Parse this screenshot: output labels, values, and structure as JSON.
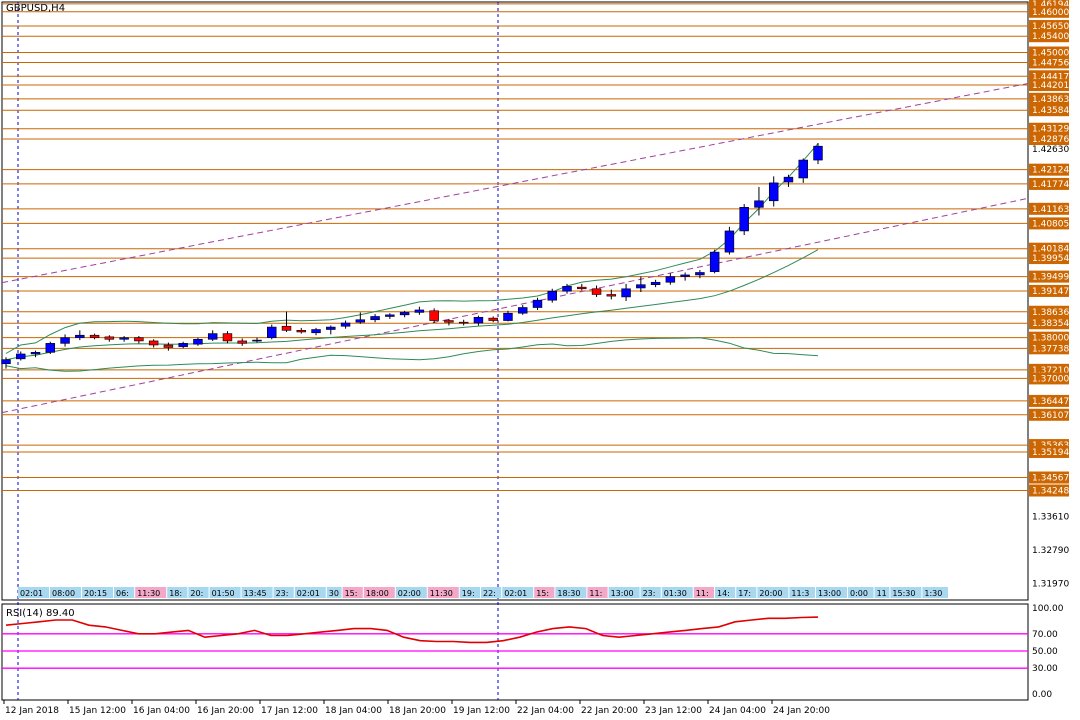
{
  "symbol_title": "GBPUSD,H4",
  "rsi_title": "RSI(14) 89.40",
  "colors": {
    "bull": "#0000ff",
    "bear": "#ff0000",
    "level_line": "#cc6600",
    "level_label_bg": "#cc6600",
    "channel": "#a040a0",
    "band": "#2e8b57",
    "rsi_line": "#e00000",
    "rsi_levels": "#ff00ff",
    "session_label_bg": "#a8d8f0",
    "session_label_red_bg": "#f4a8c8"
  },
  "chart_data": [
    {
      "type": "candlestick",
      "title": "GBPUSD,H4",
      "ylim": [
        1.3156,
        1.4624
      ],
      "price_axis_ticks": [
        "1.42630",
        "1.33610",
        "1.32790",
        "1.31970"
      ],
      "level_labels": [
        "1.46194",
        "1.46000",
        "1.45650",
        "1.45400",
        "1.45000",
        "1.44756",
        "1.44417",
        "1.44201",
        "1.43863",
        "1.43584",
        "1.43129",
        "1.42876",
        "1.42124",
        "1.41774",
        "1.41163",
        "1.40805",
        "1.40184",
        "1.39954",
        "1.39499",
        "1.39147",
        "1.38636",
        "1.38354",
        "1.38000",
        "1.37738",
        "1.37210",
        "1.37000",
        "1.36447",
        "1.36107",
        "1.35363",
        "1.35194",
        "1.34567",
        "1.34248"
      ],
      "x_labels": [
        "12 Jan 2018",
        "15 Jan 12:00",
        "16 Jan 04:00",
        "16 Jan 20:00",
        "17 Jan 12:00",
        "18 Jan 04:00",
        "18 Jan 20:00",
        "19 Jan 12:00",
        "22 Jan 04:00",
        "22 Jan 20:00",
        "23 Jan 12:00",
        "24 Jan 04:00",
        "24 Jan 20:00"
      ],
      "session_labels": [
        "02:01",
        "08:00",
        "20:15",
        "06:",
        "11:30",
        "18:",
        "20:",
        "01:50",
        "13:45",
        "23:",
        "02:01",
        "30",
        "15:",
        "18:00",
        "02:00",
        "11:30",
        "19:",
        "22:",
        "02:01",
        "15:",
        "18:30",
        "11:",
        "13:00",
        "23:",
        "01:30",
        "11:",
        "14:",
        "17:",
        "20:00",
        "11:3",
        "13:00",
        "0:00",
        "11",
        "15:30",
        "1:30"
      ],
      "ohlc": [
        [
          1.3736,
          1.3752,
          1.3724,
          1.3746
        ],
        [
          1.3748,
          1.3766,
          1.3744,
          1.376
        ],
        [
          1.376,
          1.3768,
          1.3752,
          1.3764
        ],
        [
          1.3764,
          1.379,
          1.376,
          1.3786
        ],
        [
          1.3786,
          1.3808,
          1.3778,
          1.38
        ],
        [
          1.38,
          1.3818,
          1.3794,
          1.3806
        ],
        [
          1.3806,
          1.381,
          1.3796,
          1.38
        ],
        [
          1.3802,
          1.3806,
          1.379,
          1.3796
        ],
        [
          1.3796,
          1.3804,
          1.379,
          1.38
        ],
        [
          1.38,
          1.3804,
          1.3786,
          1.3792
        ],
        [
          1.3792,
          1.3796,
          1.3776,
          1.3782
        ],
        [
          1.3782,
          1.3788,
          1.3768,
          1.3776
        ],
        [
          1.3778,
          1.379,
          1.3774,
          1.3786
        ],
        [
          1.3784,
          1.38,
          1.378,
          1.3796
        ],
        [
          1.3796,
          1.3818,
          1.3792,
          1.381
        ],
        [
          1.381,
          1.3816,
          1.3786,
          1.3792
        ],
        [
          1.3792,
          1.3798,
          1.378,
          1.3786
        ],
        [
          1.3792,
          1.38,
          1.3788,
          1.3794
        ],
        [
          1.38,
          1.3832,
          1.3796,
          1.3826
        ],
        [
          1.3828,
          1.3864,
          1.3814,
          1.3818
        ],
        [
          1.3818,
          1.3824,
          1.381,
          1.3814
        ],
        [
          1.3812,
          1.3824,
          1.3806,
          1.382
        ],
        [
          1.382,
          1.383,
          1.3808,
          1.3826
        ],
        [
          1.3828,
          1.3842,
          1.3822,
          1.3836
        ],
        [
          1.3838,
          1.3862,
          1.3834,
          1.3844
        ],
        [
          1.3844,
          1.3858,
          1.3838,
          1.3852
        ],
        [
          1.3852,
          1.386,
          1.3846,
          1.3856
        ],
        [
          1.3856,
          1.3866,
          1.385,
          1.3862
        ],
        [
          1.3862,
          1.3876,
          1.3856,
          1.3868
        ],
        [
          1.3866,
          1.3872,
          1.3836,
          1.3842
        ],
        [
          1.3842,
          1.3846,
          1.383,
          1.3838
        ],
        [
          1.3838,
          1.3844,
          1.383,
          1.3836
        ],
        [
          1.3836,
          1.3854,
          1.383,
          1.385
        ],
        [
          1.3848,
          1.3852,
          1.3838,
          1.3842
        ],
        [
          1.3842,
          1.3866,
          1.384,
          1.386
        ],
        [
          1.386,
          1.388,
          1.3856,
          1.3874
        ],
        [
          1.3874,
          1.3898,
          1.3868,
          1.3892
        ],
        [
          1.3892,
          1.392,
          1.3886,
          1.3914
        ],
        [
          1.3914,
          1.3932,
          1.3908,
          1.3926
        ],
        [
          1.3924,
          1.3932,
          1.3916,
          1.392
        ],
        [
          1.392,
          1.3928,
          1.39,
          1.3906
        ],
        [
          1.3906,
          1.3918,
          1.3894,
          1.3902
        ],
        [
          1.39,
          1.3932,
          1.389,
          1.392
        ],
        [
          1.3922,
          1.395,
          1.3912,
          1.393
        ],
        [
          1.393,
          1.3942,
          1.3924,
          1.3936
        ],
        [
          1.3936,
          1.3958,
          1.393,
          1.395
        ],
        [
          1.395,
          1.396,
          1.394,
          1.3954
        ],
        [
          1.3954,
          1.3966,
          1.3946,
          1.396
        ],
        [
          1.3962,
          1.4016,
          1.3958,
          1.401
        ],
        [
          1.401,
          1.4072,
          1.4004,
          1.4062
        ],
        [
          1.4062,
          1.4128,
          1.4052,
          1.412
        ],
        [
          1.412,
          1.417,
          1.41,
          1.4136
        ],
        [
          1.4136,
          1.4196,
          1.4122,
          1.418
        ],
        [
          1.4182,
          1.42,
          1.417,
          1.4194
        ],
        [
          1.4192,
          1.424,
          1.418,
          1.4236
        ],
        [
          1.4236,
          1.4278,
          1.4226,
          1.427
        ]
      ]
    },
    {
      "type": "line",
      "title": "RSI(14) 89.40",
      "ylim": [
        0,
        100
      ],
      "y_ticks": [
        "100.00",
        "70.00",
        "50.00",
        "30.00",
        "0.00"
      ],
      "levels": [
        70,
        50,
        30
      ],
      "series": [
        {
          "values": [
            80,
            82,
            84,
            86,
            86,
            80,
            78,
            74,
            70,
            70,
            72,
            74,
            66,
            68,
            70,
            74,
            68,
            68,
            70,
            72,
            74,
            76,
            76,
            74,
            66,
            62,
            61,
            61,
            60,
            60,
            62,
            66,
            72,
            76,
            78,
            76,
            68,
            66,
            68,
            70,
            72,
            74,
            76,
            78,
            84,
            86,
            88,
            88,
            89,
            89.4
          ]
        }
      ]
    }
  ]
}
